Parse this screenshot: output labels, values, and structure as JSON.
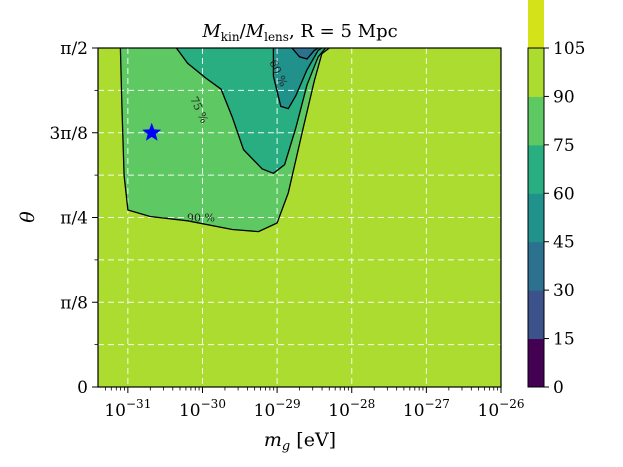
{
  "chart_data": {
    "type": "contour",
    "title": "M_kin/M_lens,  R = 5 Mpc",
    "title_parts": {
      "m": "M",
      "kin": "kin",
      "slash": "/",
      "m2": "M",
      "lens": "lens",
      "rest": ",  R = 5 Mpc"
    },
    "xlabel": "m_g [eV]",
    "xlabel_parts": {
      "m": "m",
      "g": "g",
      "unit": " [eV]"
    },
    "ylabel": "θ",
    "x_scale": "log",
    "x_range": [
      "1e-31.4",
      "1e-26"
    ],
    "x_ticks": [
      {
        "base": "10",
        "exp": "−31",
        "log": -31
      },
      {
        "base": "10",
        "exp": "−30",
        "log": -30
      },
      {
        "base": "10",
        "exp": "−29",
        "log": -29
      },
      {
        "base": "10",
        "exp": "−28",
        "log": -28
      },
      {
        "base": "10",
        "exp": "−27",
        "log": -27
      },
      {
        "base": "10",
        "exp": "−26",
        "log": -26
      }
    ],
    "y_range": [
      0,
      1.5708
    ],
    "y_ticks": [
      {
        "label": "0",
        "value": 0
      },
      {
        "label": "π/8",
        "value": 0.3927
      },
      {
        "label": "π/4",
        "value": 0.7854
      },
      {
        "label": "3π/8",
        "value": 1.1781
      },
      {
        "label": "π/2",
        "value": 1.5708
      }
    ],
    "colorbar": {
      "levels": [
        0,
        15,
        30,
        45,
        60,
        75,
        90,
        105
      ],
      "colors": [
        "#440154",
        "#3b528b",
        "#2c728e",
        "#21918c",
        "#28ae80",
        "#5ec962",
        "#addc30",
        "#d4e21a"
      ]
    },
    "contours": [
      {
        "label": "90 %",
        "value": 90,
        "points": [
          [
            -31.1,
            1.5708
          ],
          [
            -31.08,
            1.3
          ],
          [
            -31.05,
            0.98
          ],
          [
            -31.0,
            0.82
          ],
          [
            -30.7,
            0.79
          ],
          [
            -30.2,
            0.77
          ],
          [
            -29.6,
            0.73
          ],
          [
            -29.25,
            0.72
          ],
          [
            -29.0,
            0.76
          ],
          [
            -28.85,
            0.9
          ],
          [
            -28.65,
            1.2
          ],
          [
            -28.5,
            1.42
          ],
          [
            -28.4,
            1.545
          ],
          [
            -28.3,
            1.5708
          ]
        ]
      },
      {
        "label": "75 %",
        "value": 75,
        "points": [
          [
            -30.35,
            1.5708
          ],
          [
            -30.2,
            1.5
          ],
          [
            -29.95,
            1.43
          ],
          [
            -29.75,
            1.38
          ],
          [
            -29.6,
            1.25
          ],
          [
            -29.45,
            1.1
          ],
          [
            -29.2,
            1.01
          ],
          [
            -29.05,
            0.99
          ],
          [
            -28.9,
            1.03
          ],
          [
            -28.75,
            1.2
          ],
          [
            -28.6,
            1.4
          ],
          [
            -28.45,
            1.53
          ],
          [
            -28.35,
            1.5708
          ]
        ]
      },
      {
        "label": "60 %",
        "value": 60,
        "points": [
          [
            -29.05,
            1.5708
          ],
          [
            -29.05,
            1.44
          ],
          [
            -28.95,
            1.3
          ],
          [
            -28.85,
            1.29
          ],
          [
            -28.75,
            1.35
          ],
          [
            -28.6,
            1.47
          ],
          [
            -28.45,
            1.56
          ],
          [
            -28.4,
            1.5708
          ]
        ]
      },
      {
        "label": "",
        "value": 45,
        "points": [
          [
            -28.8,
            1.5708
          ],
          [
            -28.7,
            1.53
          ],
          [
            -28.6,
            1.52
          ],
          [
            -28.5,
            1.56
          ],
          [
            -28.45,
            1.5708
          ]
        ]
      }
    ],
    "marker": {
      "shape": "star",
      "color": "#0000ff",
      "x": -30.68,
      "y": 1.1781
    },
    "grid": true
  }
}
